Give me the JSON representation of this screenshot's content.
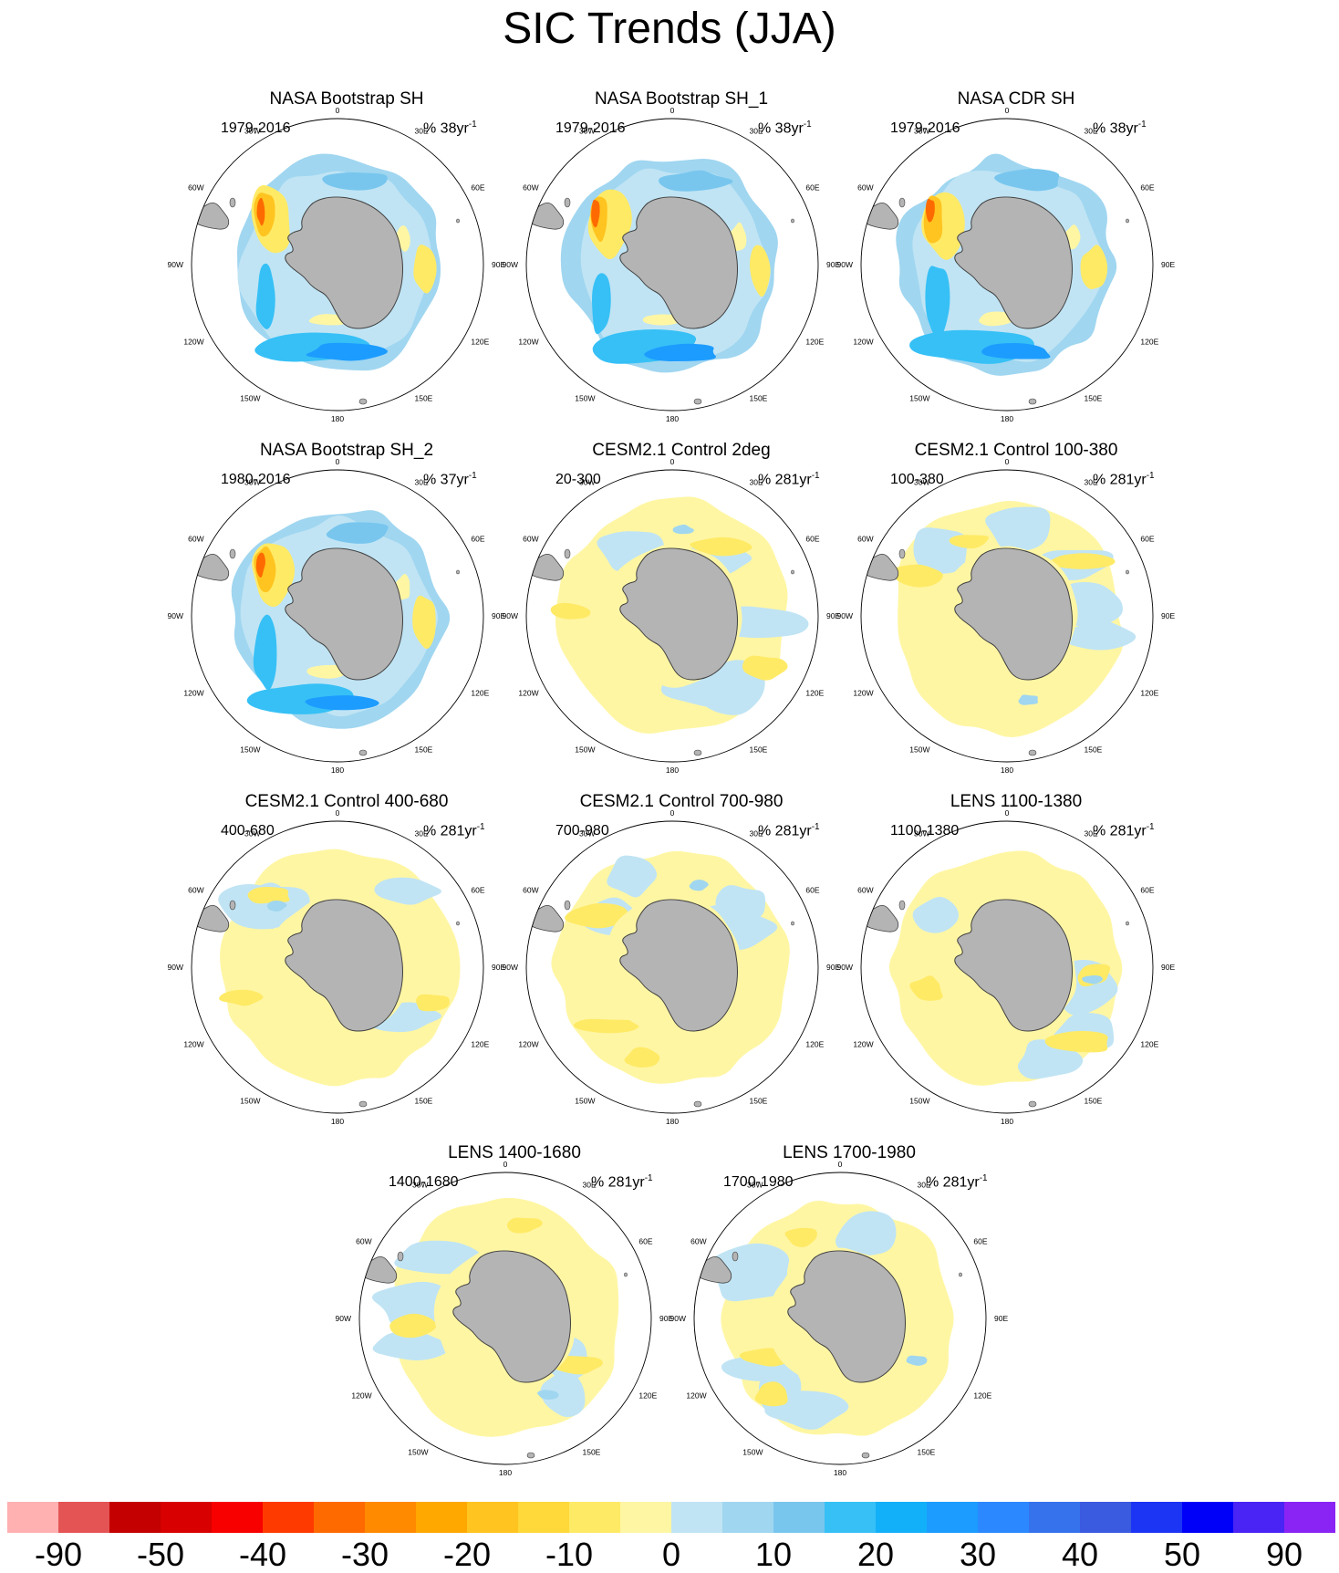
{
  "title": "SIC Trends (JJA)",
  "panels": [
    {
      "title": "NASA Bootstrap SH",
      "period": "1979-2016",
      "units": "% 38yr",
      "units_exp": "-1",
      "pattern": "obs",
      "seed": 1
    },
    {
      "title": "NASA Bootstrap SH_1",
      "period": "1979-2016",
      "units": "% 38yr",
      "units_exp": "-1",
      "pattern": "obs",
      "seed": 2
    },
    {
      "title": "NASA CDR SH",
      "period": "1979-2016",
      "units": "% 38yr",
      "units_exp": "-1",
      "pattern": "obs",
      "seed": 3
    },
    {
      "title": "NASA Bootstrap SH_2",
      "period": "1980-2016",
      "units": "% 37yr",
      "units_exp": "-1",
      "pattern": "obs",
      "seed": 4
    },
    {
      "title": "CESM2.1 Control 2deg",
      "period": "20-300",
      "units": "% 281yr",
      "units_exp": "-1",
      "pattern": "model",
      "seed": 5
    },
    {
      "title": "CESM2.1 Control 100-380",
      "period": "100-380",
      "units": "% 281yr",
      "units_exp": "-1",
      "pattern": "model",
      "seed": 6
    },
    {
      "title": "CESM2.1 Control 400-680",
      "period": "400-680",
      "units": "% 281yr",
      "units_exp": "-1",
      "pattern": "model",
      "seed": 7
    },
    {
      "title": "CESM2.1 Control 700-980",
      "period": "700-980",
      "units": "% 281yr",
      "units_exp": "-1",
      "pattern": "model",
      "seed": 8
    },
    {
      "title": "LENS 1100-1380",
      "period": "1100-1380",
      "units": "% 281yr",
      "units_exp": "-1",
      "pattern": "model",
      "seed": 9
    },
    {
      "title": "LENS 1400-1680",
      "period": "1400-1680",
      "units": "% 281yr",
      "units_exp": "-1",
      "pattern": "model",
      "seed": 10
    },
    {
      "title": "LENS 1700-1980",
      "period": "1700-1980",
      "units": "% 281yr",
      "units_exp": "-1",
      "pattern": "model",
      "seed": 11
    }
  ],
  "longitude_labels": [
    "0",
    "30E",
    "60E",
    "90E",
    "120E",
    "150E",
    "180",
    "150W",
    "120W",
    "90W",
    "60W",
    "30W"
  ],
  "colors": {
    "land": "#b4b4b4",
    "coast": "#404040",
    "colorbar": [
      "#ffb0b0",
      "#e45454",
      "#c40000",
      "#d80000",
      "#f80000",
      "#ff3a00",
      "#ff6a00",
      "#ff8a00",
      "#ffa800",
      "#ffc420",
      "#ffd83a",
      "#ffea66",
      "#fff6a4",
      "#c0e4f4",
      "#a0d6f0",
      "#78c6ee",
      "#36c0f6",
      "#12b0f8",
      "#1c9cff",
      "#2c88ff",
      "#3672ec",
      "#3a5ae0",
      "#1c34f4",
      "#0000f8",
      "#4a24f4",
      "#8a24f4"
    ]
  },
  "colorbar_labels": [
    {
      "text": "-90",
      "box": 1
    },
    {
      "text": "-50",
      "box": 3
    },
    {
      "text": "-40",
      "box": 5
    },
    {
      "text": "-30",
      "box": 7
    },
    {
      "text": "-20",
      "box": 9
    },
    {
      "text": "-10",
      "box": 11
    },
    {
      "text": "0",
      "box": 13
    },
    {
      "text": "10",
      "box": 15
    },
    {
      "text": "20",
      "box": 17
    },
    {
      "text": "30",
      "box": 19
    },
    {
      "text": "40",
      "box": 21
    },
    {
      "text": "50",
      "box": 23
    },
    {
      "text": "90",
      "box": 25
    }
  ]
}
